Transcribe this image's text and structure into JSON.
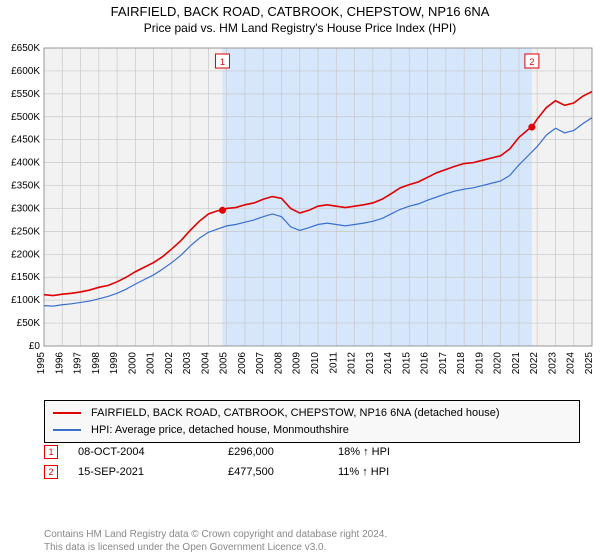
{
  "title": {
    "line1": "FAIRFIELD, BACK ROAD, CATBROOK, CHEPSTOW, NP16 6NA",
    "line2": "Price paid vs. HM Land Registry's House Price Index (HPI)"
  },
  "chart": {
    "type": "line",
    "plot_bg": "#f2f2f2",
    "page_bg": "#ffffff",
    "grid_color": "#c8c8c8",
    "axis_font_size": 10,
    "y": {
      "min": 0,
      "max": 650000,
      "step": 50000,
      "prefix": "£",
      "suffix": "K",
      "divisor": 1000
    },
    "x": {
      "min": 1995,
      "max": 2025,
      "step": 1
    },
    "shaded": {
      "from": 2004.77,
      "to": 2021.71,
      "color": "#d6e6fb"
    },
    "series": [
      {
        "name": "FAIRFIELD, BACK ROAD, CATBROOK, CHEPSTOW, NP16 6NA (detached house)",
        "color": "#e00000",
        "width": 1.6,
        "data": [
          [
            1995,
            112000
          ],
          [
            1995.5,
            110000
          ],
          [
            1996,
            113000
          ],
          [
            1996.5,
            115000
          ],
          [
            1997,
            118000
          ],
          [
            1997.5,
            122000
          ],
          [
            1998,
            128000
          ],
          [
            1998.5,
            132000
          ],
          [
            1999,
            140000
          ],
          [
            1999.5,
            150000
          ],
          [
            2000,
            162000
          ],
          [
            2000.5,
            172000
          ],
          [
            2001,
            182000
          ],
          [
            2001.5,
            195000
          ],
          [
            2002,
            212000
          ],
          [
            2002.5,
            230000
          ],
          [
            2003,
            252000
          ],
          [
            2003.5,
            272000
          ],
          [
            2004,
            288000
          ],
          [
            2004.5,
            295000
          ],
          [
            2004.77,
            296000
          ],
          [
            2005,
            300000
          ],
          [
            2005.5,
            302000
          ],
          [
            2006,
            308000
          ],
          [
            2006.5,
            312000
          ],
          [
            2007,
            320000
          ],
          [
            2007.5,
            326000
          ],
          [
            2008,
            322000
          ],
          [
            2008.5,
            300000
          ],
          [
            2009,
            290000
          ],
          [
            2009.5,
            296000
          ],
          [
            2010,
            305000
          ],
          [
            2010.5,
            308000
          ],
          [
            2011,
            305000
          ],
          [
            2011.5,
            302000
          ],
          [
            2012,
            305000
          ],
          [
            2012.5,
            308000
          ],
          [
            2013,
            312000
          ],
          [
            2013.5,
            320000
          ],
          [
            2014,
            332000
          ],
          [
            2014.5,
            345000
          ],
          [
            2015,
            352000
          ],
          [
            2015.5,
            358000
          ],
          [
            2016,
            368000
          ],
          [
            2016.5,
            378000
          ],
          [
            2017,
            385000
          ],
          [
            2017.5,
            392000
          ],
          [
            2018,
            398000
          ],
          [
            2018.5,
            400000
          ],
          [
            2019,
            405000
          ],
          [
            2019.5,
            410000
          ],
          [
            2020,
            415000
          ],
          [
            2020.5,
            430000
          ],
          [
            2021,
            455000
          ],
          [
            2021.5,
            472000
          ],
          [
            2021.71,
            477500
          ],
          [
            2022,
            495000
          ],
          [
            2022.5,
            520000
          ],
          [
            2023,
            535000
          ],
          [
            2023.5,
            525000
          ],
          [
            2024,
            530000
          ],
          [
            2024.5,
            545000
          ],
          [
            2025,
            555000
          ]
        ]
      },
      {
        "name": "HPI: Average price, detached house, Monmouthshire",
        "color": "#3a6fcf",
        "width": 1.2,
        "data": [
          [
            1995,
            88000
          ],
          [
            1995.5,
            87000
          ],
          [
            1996,
            90000
          ],
          [
            1996.5,
            92000
          ],
          [
            1997,
            95000
          ],
          [
            1997.5,
            98000
          ],
          [
            1998,
            103000
          ],
          [
            1998.5,
            108000
          ],
          [
            1999,
            115000
          ],
          [
            1999.5,
            124000
          ],
          [
            2000,
            135000
          ],
          [
            2000.5,
            145000
          ],
          [
            2001,
            155000
          ],
          [
            2001.5,
            168000
          ],
          [
            2002,
            182000
          ],
          [
            2002.5,
            198000
          ],
          [
            2003,
            218000
          ],
          [
            2003.5,
            235000
          ],
          [
            2004,
            248000
          ],
          [
            2004.5,
            255000
          ],
          [
            2005,
            262000
          ],
          [
            2005.5,
            265000
          ],
          [
            2006,
            270000
          ],
          [
            2006.5,
            275000
          ],
          [
            2007,
            282000
          ],
          [
            2007.5,
            288000
          ],
          [
            2008,
            282000
          ],
          [
            2008.5,
            260000
          ],
          [
            2009,
            252000
          ],
          [
            2009.5,
            258000
          ],
          [
            2010,
            265000
          ],
          [
            2010.5,
            268000
          ],
          [
            2011,
            265000
          ],
          [
            2011.5,
            262000
          ],
          [
            2012,
            265000
          ],
          [
            2012.5,
            268000
          ],
          [
            2013,
            272000
          ],
          [
            2013.5,
            278000
          ],
          [
            2014,
            288000
          ],
          [
            2014.5,
            298000
          ],
          [
            2015,
            305000
          ],
          [
            2015.5,
            310000
          ],
          [
            2016,
            318000
          ],
          [
            2016.5,
            325000
          ],
          [
            2017,
            332000
          ],
          [
            2017.5,
            338000
          ],
          [
            2018,
            342000
          ],
          [
            2018.5,
            345000
          ],
          [
            2019,
            350000
          ],
          [
            2019.5,
            355000
          ],
          [
            2020,
            360000
          ],
          [
            2020.5,
            372000
          ],
          [
            2021,
            395000
          ],
          [
            2021.5,
            415000
          ],
          [
            2022,
            435000
          ],
          [
            2022.5,
            460000
          ],
          [
            2023,
            475000
          ],
          [
            2023.5,
            465000
          ],
          [
            2024,
            470000
          ],
          [
            2024.5,
            485000
          ],
          [
            2025,
            498000
          ]
        ]
      }
    ],
    "markers": [
      {
        "n": 1,
        "x": 2004.77,
        "y": 296000,
        "color": "#e00000"
      },
      {
        "n": 2,
        "x": 2021.71,
        "y": 477500,
        "color": "#e00000"
      }
    ]
  },
  "legend": {
    "items": [
      {
        "color": "#e00000",
        "label": "FAIRFIELD, BACK ROAD, CATBROOK, CHEPSTOW, NP16 6NA (detached house)"
      },
      {
        "color": "#3a6fcf",
        "label": "HPI: Average price, detached house, Monmouthshire"
      }
    ]
  },
  "sales": [
    {
      "n": 1,
      "date": "08-OCT-2004",
      "price": "£296,000",
      "hpi": "18% ↑ HPI"
    },
    {
      "n": 2,
      "date": "15-SEP-2021",
      "price": "£477,500",
      "hpi": "11% ↑ HPI"
    }
  ],
  "footer": {
    "line1": "Contains HM Land Registry data © Crown copyright and database right 2024.",
    "line2": "This data is licensed under the Open Government Licence v3.0."
  }
}
